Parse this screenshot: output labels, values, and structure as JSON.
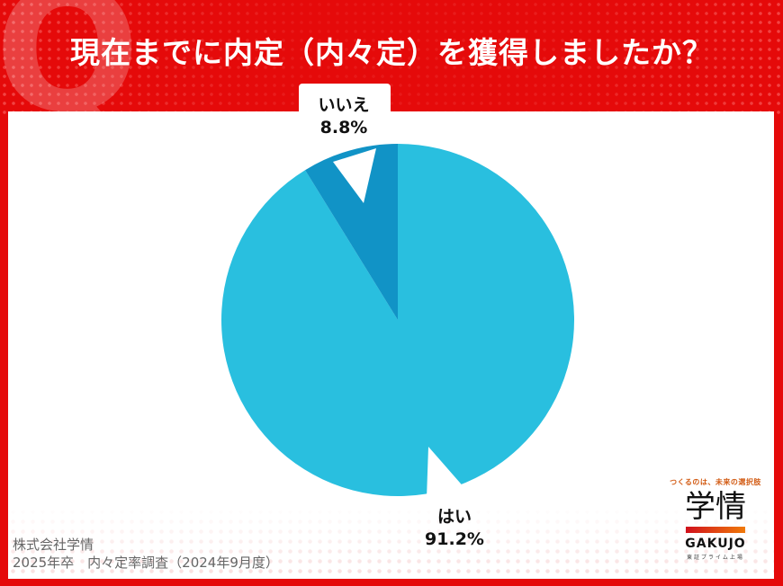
{
  "header": {
    "q_mark": "Q",
    "title": "現在までに内定（内々定）を獲得しましたか？"
  },
  "labels": {
    "no": {
      "name": "いいえ",
      "value": "8.8%"
    },
    "yes": {
      "name": "はい",
      "value": "91.2%"
    }
  },
  "source": {
    "company": "株式会社学情",
    "survey": "2025年卒　内々定率調査（2024年9月度）"
  },
  "logo": {
    "tagline": "つくるのは、未来の選択肢",
    "kanji": "学情",
    "english": "GAKUJO",
    "sub": "東証プライム上場"
  },
  "colors": {
    "background_red": "#e50a0a",
    "yes_slice": "#29bfdf",
    "no_slice": "#1193c6"
  },
  "chart_data": {
    "type": "pie",
    "title": "現在までに内定（内々定）を獲得しましたか？",
    "categories": [
      "はい",
      "いいえ"
    ],
    "values": [
      91.2,
      8.8
    ],
    "colors": [
      "#29bfdf",
      "#1193c6"
    ],
    "start_angle": "12 o'clock, clockwise",
    "legend": "none (direct labels)"
  }
}
